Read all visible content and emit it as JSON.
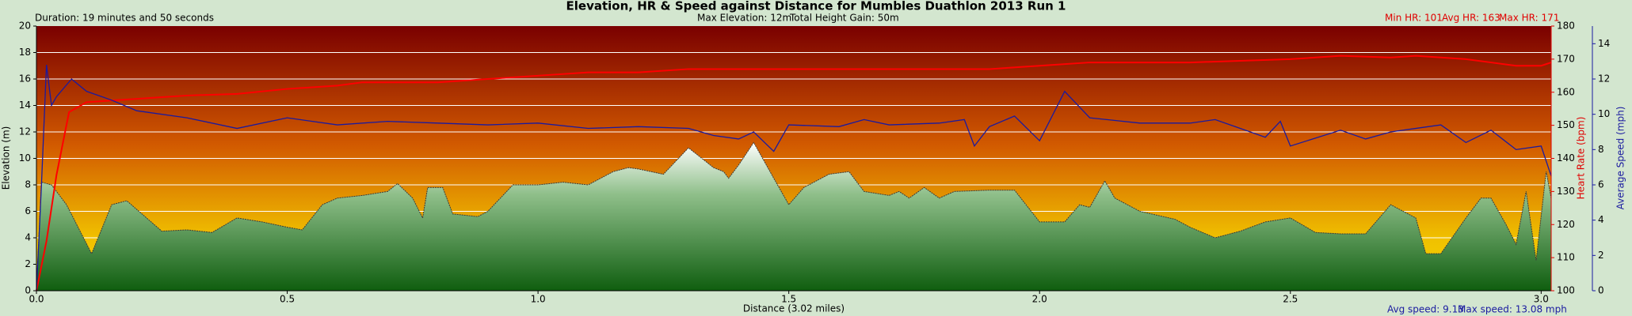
{
  "chart_data": {
    "type": "area-line",
    "title": "Elevation, HR & Speed against Distance for Mumbles Duathlon 2013 Run 1",
    "stats": {
      "duration": "Duration: 19 minutes and 50 seconds",
      "max_elevation": "Max Elevation: 12m",
      "height_gain": "Total Height Gain: 50m",
      "min_hr": "Min HR: 101",
      "avg_hr": "Avg HR: 163",
      "max_hr": "Max HR: 171",
      "avg_speed": "Avg speed: 9.13",
      "max_speed": "Max speed: 13.08 mph"
    },
    "xlabel": "Distance (3.02 miles)",
    "ylabel": "Elevation (m)",
    "y2label": "Heart Rate (bpm)",
    "y3label": "Average Speed (mph)",
    "xlim": [
      0,
      3.02
    ],
    "xticks": [
      {
        "value": 0,
        "label": "0.0"
      },
      0.5,
      {
        "value": 1,
        "label": "1.0"
      },
      1.5,
      {
        "value": 2,
        "label": "2.0"
      },
      2.5,
      {
        "value": 3,
        "label": "3.0"
      }
    ],
    "ylim": [
      0,
      20
    ],
    "yticks": [
      0,
      2,
      4,
      6,
      8,
      10,
      12,
      14,
      16,
      18,
      20
    ],
    "y2lim": [
      100,
      180
    ],
    "y2ticks": [
      100,
      110,
      120,
      130,
      140,
      150,
      160,
      170,
      180
    ],
    "y3lim": [
      0,
      15
    ],
    "y3ticks": [
      0,
      2,
      4,
      6,
      8,
      10,
      12,
      14
    ],
    "grid": true,
    "series": [
      {
        "kind": "area",
        "axis": "y",
        "color": "#1f6e1f",
        "x": [
          0,
          0.01,
          0.03,
          0.06,
          0.11,
          0.15,
          0.18,
          0.25,
          0.3,
          0.35,
          0.4,
          0.45,
          0.5,
          0.53,
          0.57,
          0.6,
          0.65,
          0.7,
          0.72,
          0.75,
          0.77,
          0.78,
          0.81,
          0.83,
          0.88,
          0.9,
          0.95,
          1.0,
          1.05,
          1.1,
          1.15,
          1.18,
          1.2,
          1.25,
          1.3,
          1.35,
          1.37,
          1.38,
          1.4,
          1.43,
          1.47,
          1.5,
          1.53,
          1.58,
          1.62,
          1.65,
          1.7,
          1.72,
          1.74,
          1.77,
          1.8,
          1.83,
          1.9,
          1.95,
          2.0,
          2.05,
          2.08,
          2.1,
          2.13,
          2.15,
          2.2,
          2.27,
          2.3,
          2.35,
          2.4,
          2.45,
          2.5,
          2.55,
          2.6,
          2.65,
          2.7,
          2.75,
          2.77,
          2.8,
          2.85,
          2.88,
          2.9,
          2.93,
          2.95,
          2.97,
          2.99,
          3.01,
          3.02
        ],
        "values": [
          0,
          8.2,
          8,
          6.5,
          2.8,
          6.5,
          6.8,
          4.5,
          4.6,
          4.4,
          5.5,
          5.2,
          4.8,
          4.6,
          6.5,
          7,
          7.2,
          7.5,
          8.1,
          7,
          5.5,
          7.8,
          7.8,
          5.8,
          5.6,
          6,
          8,
          8,
          8.2,
          8,
          9,
          9.3,
          9.2,
          8.8,
          10.8,
          9.3,
          9,
          8.5,
          9.5,
          11.2,
          8.5,
          6.5,
          7.8,
          8.8,
          9,
          7.5,
          7.2,
          7.5,
          7,
          7.8,
          7,
          7.5,
          7.6,
          7.6,
          5.2,
          5.2,
          6.5,
          6.3,
          8.3,
          7,
          6,
          5.4,
          4.8,
          4,
          4.5,
          5.2,
          5.5,
          4.4,
          4.3,
          4.3,
          6.5,
          5.5,
          2.8,
          2.8,
          5.5,
          7,
          7,
          5,
          3.5,
          7.5,
          2.3,
          9,
          7
        ]
      },
      {
        "kind": "line",
        "axis": "y2",
        "color": "#ff0000",
        "x": [
          0,
          0.02,
          0.04,
          0.065,
          0.1,
          0.2,
          0.25,
          0.3,
          0.4,
          0.5,
          0.6,
          0.65,
          0.8,
          0.9,
          1.0,
          1.1,
          1.2,
          1.3,
          1.5,
          1.7,
          1.9,
          2.0,
          2.1,
          2.3,
          2.5,
          2.6,
          2.7,
          2.75,
          2.85,
          2.9,
          2.95,
          3.0,
          3.02
        ],
        "values": [
          100,
          115,
          135,
          154,
          157,
          158,
          158.5,
          159,
          159.5,
          161,
          162,
          163,
          163,
          164,
          165,
          166,
          166,
          167,
          167,
          167,
          167,
          168,
          169,
          169,
          170,
          171,
          170.5,
          171,
          170,
          169,
          168,
          168,
          169
        ]
      },
      {
        "kind": "line",
        "axis": "y3",
        "color": "#1a1aa0",
        "x": [
          0,
          0.01,
          0.02,
          0.03,
          0.04,
          0.07,
          0.1,
          0.15,
          0.2,
          0.3,
          0.4,
          0.5,
          0.6,
          0.7,
          0.8,
          0.9,
          1.0,
          1.1,
          1.2,
          1.3,
          1.35,
          1.4,
          1.43,
          1.47,
          1.5,
          1.6,
          1.65,
          1.7,
          1.8,
          1.85,
          1.87,
          1.9,
          1.95,
          2.0,
          2.05,
          2.1,
          2.2,
          2.3,
          2.35,
          2.4,
          2.45,
          2.48,
          2.5,
          2.6,
          2.65,
          2.7,
          2.8,
          2.85,
          2.9,
          2.95,
          3.0,
          3.02
        ],
        "values": [
          0,
          6,
          12.8,
          10.5,
          11,
          12,
          11.3,
          10.8,
          10.2,
          9.8,
          9.2,
          9.8,
          9.4,
          9.6,
          9.5,
          9.4,
          9.5,
          9.2,
          9.3,
          9.2,
          8.8,
          8.6,
          9,
          7.9,
          9.4,
          9.3,
          9.7,
          9.4,
          9.5,
          9.7,
          8.2,
          9.3,
          9.9,
          8.5,
          11.3,
          9.8,
          9.5,
          9.5,
          9.7,
          9.2,
          8.7,
          9.6,
          8.2,
          9.1,
          8.6,
          9,
          9.4,
          8.4,
          9.1,
          8,
          8.2,
          6.5
        ]
      }
    ]
  }
}
